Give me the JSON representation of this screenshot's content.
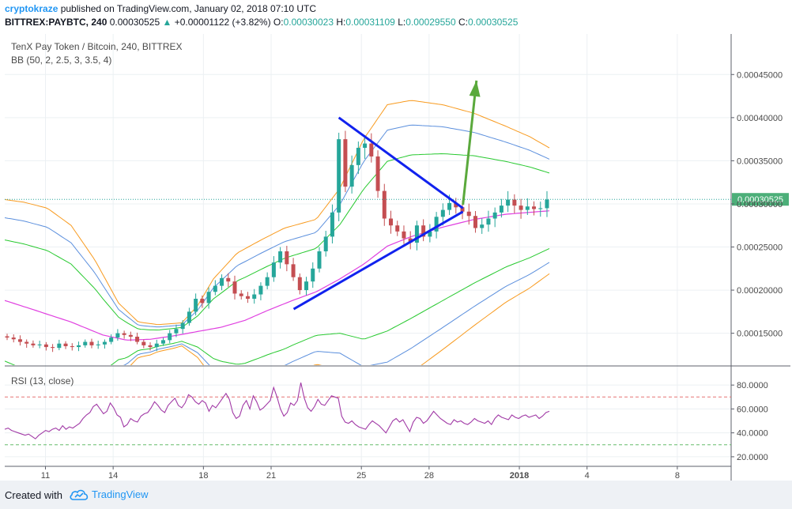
{
  "header": {
    "author": "cryptokraze",
    "published": " published on TradingView.com, January 02, 2018 07:10 UTC",
    "symbol": "BITTREX:PAYBTC, 240",
    "price": "0.00030525",
    "change": "+0.00001122 (+3.82%)",
    "ohlc": [
      {
        "key": "O:",
        "value": "0.00030023"
      },
      {
        "key": "H:",
        "value": "0.00031109"
      },
      {
        "key": "L:",
        "value": "0.00029550"
      },
      {
        "key": "C:",
        "value": "0.00030525"
      }
    ]
  },
  "chart_data": [
    {
      "type": "candlestick",
      "title": "TenX Pay Token / Bitcoin, 240, BITTREX",
      "indicator": "BB (50, 2, 2.5, 3, 3.5, 4)",
      "x_ticks": [
        "11",
        "14",
        "18",
        "21",
        "25",
        "28",
        "2018",
        "4",
        "8"
      ],
      "y_ticks": [
        "0.00045000",
        "0.00040000",
        "0.00035000",
        "0.00030000",
        "0.00025000",
        "0.00020000",
        "0.00015000"
      ],
      "ylim": [
        0.000113,
        0.000497
      ],
      "last_price": "0.00030525",
      "close_series": [
        0.000145,
        0.000143,
        0.00014,
        0.000138,
        0.000136,
        0.000137,
        0.000134,
        0.000133,
        0.000138,
        0.000135,
        0.000134,
        0.000136,
        0.00014,
        0.000136,
        0.000137,
        0.00014,
        0.000145,
        0.00015,
        0.000148,
        0.000146,
        0.00014,
        0.000136,
        0.000134,
        0.000138,
        0.000142,
        0.00015,
        0.000155,
        0.000162,
        0.000175,
        0.00019,
        0.000185,
        0.000198,
        0.000205,
        0.000214,
        0.00021,
        0.000196,
        0.000193,
        0.00019,
        0.000195,
        0.000205,
        0.000215,
        0.000232,
        0.000245,
        0.00023,
        0.000215,
        0.0002,
        0.00021,
        0.000225,
        0.000245,
        0.000262,
        0.00029,
        0.000375,
        0.00032,
        0.000345,
        0.000365,
        0.00037,
        0.000355,
        0.000315,
        0.000283,
        0.000275,
        0.000268,
        0.00026,
        0.000255,
        0.000275,
        0.000262,
        0.000268,
        0.000285,
        0.000293,
        0.000301,
        0.000296,
        0.000291,
        0.000286,
        0.000272,
        0.000276,
        0.000283,
        0.00029,
        0.000298,
        0.000305,
        0.000298,
        0.000293,
        0.000297,
        0.000294,
        0.000295,
        0.000305
      ],
      "series": [
        {
          "name": "orange band",
          "color": "#f89a1e"
        },
        {
          "name": "blue band",
          "color": "#5b8fdd"
        },
        {
          "name": "green band",
          "color": "#27c92f"
        },
        {
          "name": "basis",
          "color": "#e040e0"
        }
      ],
      "annotations": {
        "triangle_upper": [
          [
            24,
            0.0004
          ],
          [
            29.5,
            0.000295
          ]
        ],
        "triangle_lower": [
          [
            22,
            0.000178
          ],
          [
            29.5,
            0.000291
          ]
        ],
        "arrow": [
          [
            29.5,
            0.000299
          ],
          [
            30.1,
            0.000443
          ]
        ],
        "colors": {
          "triangle": "#1122ee",
          "arrow": "#5aa93c",
          "candle_up": "#26a69a",
          "candle_down": "#c44e52"
        }
      }
    },
    {
      "type": "line",
      "title": "RSI (13, close)",
      "y_ticks": [
        "80.0000",
        "60.0000",
        "40.0000",
        "20.0000"
      ],
      "ylim": [
        12,
        94
      ],
      "levels": [
        70,
        30
      ],
      "values": [
        43,
        44,
        42,
        41,
        40,
        39,
        38,
        39,
        37,
        35,
        38,
        40,
        42,
        41,
        43,
        44,
        42,
        46,
        43,
        45,
        44,
        46,
        48,
        52,
        55,
        57,
        62,
        64,
        60,
        56,
        58,
        65,
        61,
        55,
        53,
        45,
        47,
        52,
        50,
        49,
        54,
        56,
        57,
        61,
        66,
        63,
        59,
        57,
        63,
        66,
        69,
        63,
        61,
        65,
        72,
        70,
        66,
        64,
        67,
        65,
        58,
        63,
        61,
        65,
        69,
        73,
        68,
        57,
        52,
        54,
        63,
        67,
        60,
        71,
        66,
        59,
        61,
        64,
        67,
        78,
        70,
        60,
        54,
        57,
        65,
        63,
        67,
        82,
        69,
        61,
        58,
        62,
        68,
        64,
        63,
        67,
        71,
        70,
        69,
        54,
        49,
        48,
        50,
        47,
        45,
        44,
        43,
        47,
        50,
        48,
        46,
        43,
        40,
        45,
        50,
        52,
        49,
        51,
        46,
        41,
        49,
        53,
        52,
        48,
        50,
        54,
        58,
        55,
        52,
        50,
        48,
        47,
        51,
        49,
        50,
        48,
        47,
        49,
        52,
        50,
        49,
        48,
        50,
        47,
        52,
        55,
        53,
        52,
        51,
        55,
        53,
        52,
        54,
        55,
        53,
        54,
        55,
        52,
        54,
        57,
        58
      ]
    }
  ],
  "footer": {
    "created": "Created with",
    "brand": "TradingView"
  }
}
